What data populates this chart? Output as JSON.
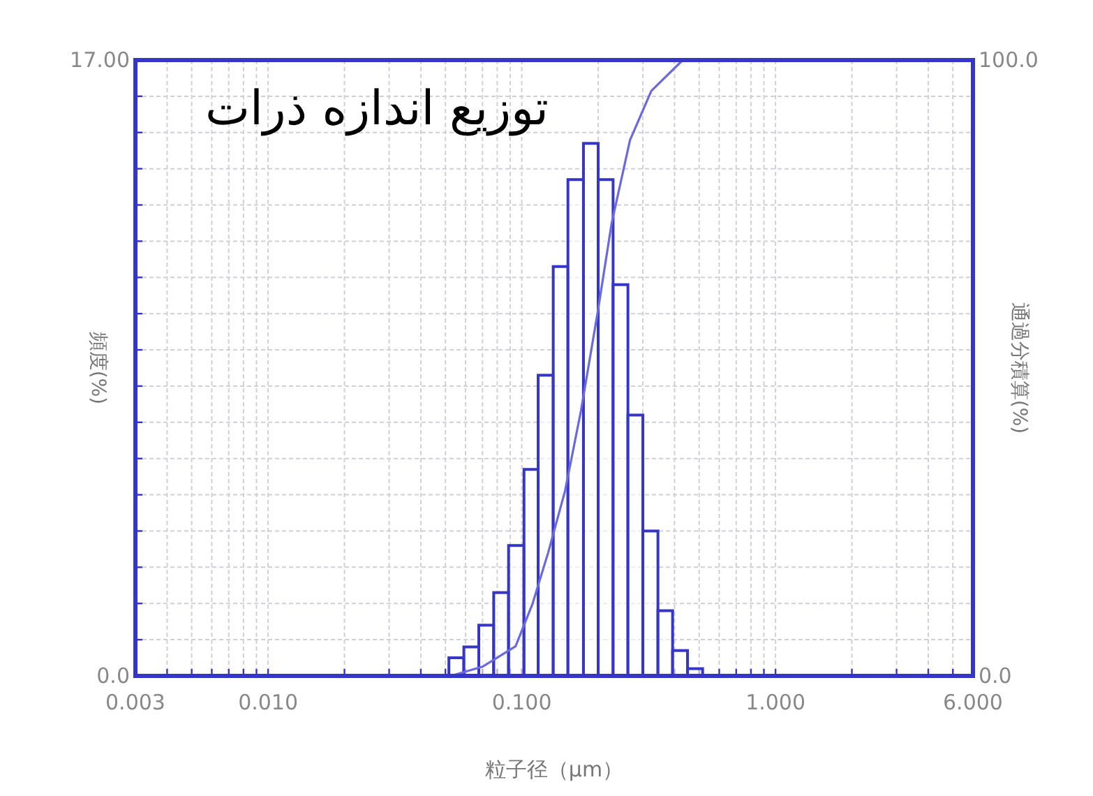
{
  "chart_data": {
    "type": "histogram",
    "title": "توزیع اندازه ذرات",
    "xlabel": "粒子径（μm）",
    "ylabel": "頻度(%)",
    "y2label": "通過分積算(%)",
    "bins": [
      0.0516,
      0.0591,
      0.0677,
      0.0775,
      0.0887,
      0.102,
      0.116,
      0.133,
      0.152,
      0.175,
      0.2,
      0.229,
      0.262,
      0.3,
      0.344,
      0.393,
      0.45,
      0.516
    ],
    "series": [
      {
        "color": "#3535c8",
        "values": [
          0.5,
          0.8,
          1.4,
          2.3,
          3.6,
          5.7,
          8.3,
          11.3,
          13.7,
          14.7,
          13.7,
          10.8,
          7.2,
          4.0,
          1.8,
          0.7,
          0.2
        ]
      },
      {
        "type": "line",
        "axis": "y2",
        "color": "#6a6ae0",
        "x": [
          0.0525,
          0.07,
          0.0945,
          0.11,
          0.127,
          0.148,
          0.171,
          0.199,
          0.226,
          0.267,
          0.324,
          0.431
        ],
        "values": [
          0,
          1.5,
          4.8,
          11.6,
          20,
          30,
          43,
          59,
          73.5,
          87,
          95,
          100
        ]
      }
    ],
    "log": "x",
    "grid": true,
    "xlim": [
      0.003,
      6
    ],
    "xticks": [
      {
        "value": 0.003,
        "label": "0.003"
      },
      {
        "value": 0.004,
        "label": null
      },
      {
        "value": 0.005,
        "label": null
      },
      {
        "value": 0.006,
        "label": null
      },
      {
        "value": 0.007,
        "label": null
      },
      {
        "value": 0.008,
        "label": null
      },
      {
        "value": 0.009,
        "label": null
      },
      {
        "value": 0.01,
        "label": "0.010"
      },
      {
        "value": 0.02,
        "label": null
      },
      {
        "value": 0.03,
        "label": null
      },
      {
        "value": 0.04,
        "label": null
      },
      {
        "value": 0.05,
        "label": null
      },
      {
        "value": 0.06,
        "label": null
      },
      {
        "value": 0.07,
        "label": null
      },
      {
        "value": 0.08,
        "label": null
      },
      {
        "value": 0.09,
        "label": null
      },
      {
        "value": 0.1,
        "label": "0.100"
      },
      {
        "value": 0.2,
        "label": null
      },
      {
        "value": 0.3,
        "label": null
      },
      {
        "value": 0.4,
        "label": null
      },
      {
        "value": 0.5,
        "label": null
      },
      {
        "value": 0.6,
        "label": null
      },
      {
        "value": 0.7,
        "label": null
      },
      {
        "value": 0.8,
        "label": null
      },
      {
        "value": 0.9,
        "label": null
      },
      {
        "value": 1,
        "label": "1.000"
      },
      {
        "value": 2,
        "label": null
      },
      {
        "value": 3,
        "label": null
      },
      {
        "value": 4,
        "label": null
      },
      {
        "value": 5,
        "label": null
      },
      {
        "value": 6,
        "label": "6.000"
      }
    ],
    "ylim": [
      0,
      17
    ],
    "yticks": [
      {
        "value": 0,
        "label": "0.0"
      },
      {
        "value": 1,
        "label": null
      },
      {
        "value": 2,
        "label": null
      },
      {
        "value": 3,
        "label": null
      },
      {
        "value": 4,
        "label": null
      },
      {
        "value": 5,
        "label": null
      },
      {
        "value": 6,
        "label": null
      },
      {
        "value": 7,
        "label": null
      },
      {
        "value": 8,
        "label": null
      },
      {
        "value": 9,
        "label": null
      },
      {
        "value": 10,
        "label": null
      },
      {
        "value": 11,
        "label": null
      },
      {
        "value": 12,
        "label": null
      },
      {
        "value": 13,
        "label": null
      },
      {
        "value": 14,
        "label": null
      },
      {
        "value": 15,
        "label": null
      },
      {
        "value": 16,
        "label": null
      },
      {
        "value": 17,
        "label": "17.00"
      }
    ],
    "y2lim": [
      0,
      100
    ],
    "y2ticks": [
      {
        "value": 0,
        "label": "0.0"
      },
      {
        "value": 100,
        "label": "100.0"
      }
    ]
  }
}
